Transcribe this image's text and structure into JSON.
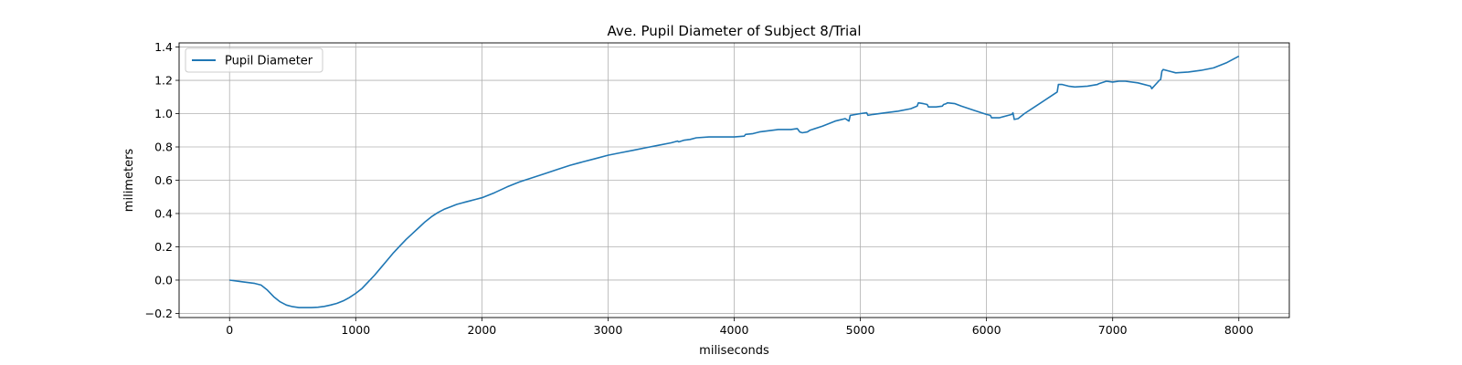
{
  "chart_data": {
    "type": "line",
    "title": "Ave. Pupil Diameter of Subject 8/Trial",
    "xlabel": "miliseconds",
    "ylabel": "milimeters",
    "xlim": [
      -400,
      8400
    ],
    "ylim": [
      -0.225,
      1.425
    ],
    "x_ticks": [
      0,
      1000,
      2000,
      3000,
      4000,
      5000,
      6000,
      7000,
      8000
    ],
    "y_ticks": [
      -0.2,
      0.0,
      0.2,
      0.4,
      0.6,
      0.8,
      1.0,
      1.2,
      1.4
    ],
    "x_tick_labels": [
      "0",
      "1000",
      "2000",
      "3000",
      "4000",
      "5000",
      "6000",
      "7000",
      "8000"
    ],
    "y_tick_labels": [
      "−0.2",
      "0.0",
      "0.2",
      "0.4",
      "0.6",
      "0.8",
      "1.0",
      "1.2",
      "1.4"
    ],
    "grid": true,
    "legend_position": "top-left",
    "color": "#1f77b4",
    "series": [
      {
        "name": "Pupil Diameter",
        "x": [
          0,
          100,
          200,
          250,
          300,
          350,
          400,
          450,
          500,
          550,
          600,
          650,
          700,
          750,
          800,
          850,
          900,
          950,
          1000,
          1050,
          1100,
          1150,
          1200,
          1250,
          1300,
          1350,
          1400,
          1450,
          1500,
          1550,
          1600,
          1650,
          1700,
          1750,
          1800,
          1850,
          1900,
          1950,
          2000,
          2100,
          2200,
          2300,
          2400,
          2500,
          2600,
          2700,
          2800,
          2900,
          3000,
          3100,
          3200,
          3300,
          3400,
          3500,
          3550,
          3560,
          3600,
          3650,
          3700,
          3800,
          3900,
          4000,
          4080,
          4090,
          4150,
          4200,
          4250,
          4300,
          4350,
          4400,
          4450,
          4500,
          4520,
          4540,
          4580,
          4600,
          4700,
          4800,
          4880,
          4900,
          4910,
          4920,
          5000,
          5050,
          5060,
          5100,
          5200,
          5300,
          5400,
          5450,
          5460,
          5500,
          5530,
          5540,
          5600,
          5650,
          5660,
          5680,
          5690,
          5750,
          5800,
          5900,
          6000,
          6030,
          6040,
          6100,
          6200,
          6210,
          6220,
          6250,
          6300,
          6400,
          6500,
          6560,
          6570,
          6600,
          6650,
          6700,
          6800,
          6880,
          6890,
          6950,
          7000,
          7050,
          7100,
          7200,
          7300,
          7310,
          7370,
          7380,
          7390,
          7400,
          7450,
          7500,
          7600,
          7700,
          7800,
          7900,
          8000
        ],
        "y": [
          0.0,
          -0.01,
          -0.02,
          -0.03,
          -0.06,
          -0.1,
          -0.13,
          -0.15,
          -0.16,
          -0.165,
          -0.165,
          -0.165,
          -0.163,
          -0.158,
          -0.15,
          -0.14,
          -0.125,
          -0.105,
          -0.08,
          -0.05,
          -0.01,
          0.03,
          0.075,
          0.12,
          0.165,
          0.205,
          0.245,
          0.28,
          0.315,
          0.35,
          0.38,
          0.405,
          0.425,
          0.44,
          0.455,
          0.465,
          0.475,
          0.485,
          0.495,
          0.525,
          0.56,
          0.59,
          0.615,
          0.64,
          0.665,
          0.69,
          0.71,
          0.73,
          0.75,
          0.765,
          0.78,
          0.795,
          0.81,
          0.825,
          0.835,
          0.83,
          0.84,
          0.845,
          0.855,
          0.86,
          0.86,
          0.86,
          0.865,
          0.875,
          0.88,
          0.89,
          0.895,
          0.9,
          0.905,
          0.905,
          0.905,
          0.91,
          0.89,
          0.885,
          0.89,
          0.9,
          0.925,
          0.955,
          0.97,
          0.96,
          0.955,
          0.99,
          1.0,
          1.005,
          0.99,
          0.995,
          1.005,
          1.015,
          1.03,
          1.045,
          1.065,
          1.06,
          1.055,
          1.04,
          1.04,
          1.045,
          1.055,
          1.06,
          1.065,
          1.06,
          1.045,
          1.02,
          0.995,
          0.99,
          0.975,
          0.975,
          0.995,
          1.005,
          0.965,
          0.97,
          1.0,
          1.05,
          1.1,
          1.13,
          1.175,
          1.175,
          1.165,
          1.16,
          1.165,
          1.175,
          1.18,
          1.195,
          1.19,
          1.195,
          1.195,
          1.185,
          1.165,
          1.15,
          1.2,
          1.205,
          1.255,
          1.265,
          1.255,
          1.245,
          1.25,
          1.26,
          1.275,
          1.305,
          1.345
        ]
      }
    ]
  }
}
